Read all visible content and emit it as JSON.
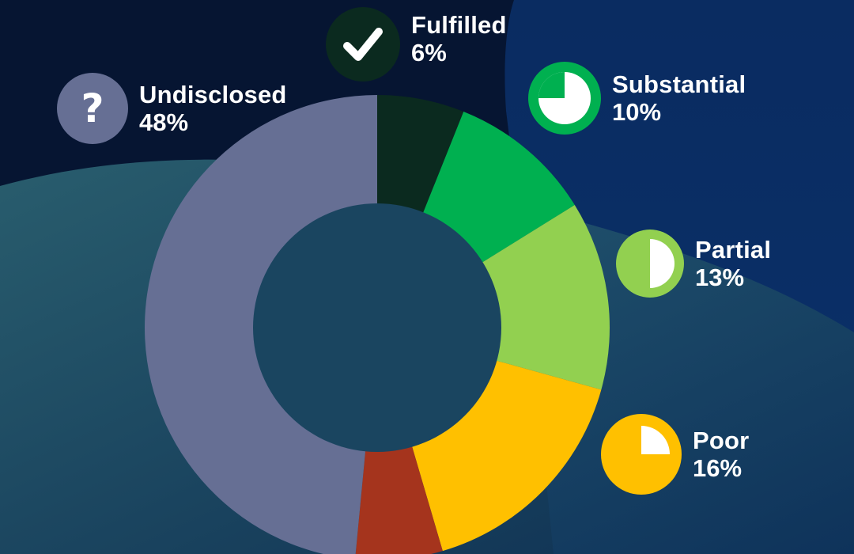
{
  "chart_data": {
    "type": "pie",
    "donut": true,
    "start": "top",
    "direction": "clockwise",
    "slices": [
      {
        "name": "Fulfilled",
        "value": 6,
        "label": "6%",
        "color": "#0b2a1f",
        "icon": "checkmark-icon"
      },
      {
        "name": "Substantial",
        "value": 10,
        "label": "10%",
        "color": "#00b050",
        "icon": "three-quarter-pie-icon"
      },
      {
        "name": "Partial",
        "value": 13,
        "label": "13%",
        "color": "#92d050",
        "icon": "half-pie-icon"
      },
      {
        "name": "Poor",
        "value": 16,
        "label": "16%",
        "color": "#ffc000",
        "icon": "quarter-pie-icon"
      },
      {
        "name": "",
        "value": 6,
        "label": "",
        "color": "#a5341d",
        "icon": ""
      },
      {
        "name": "Undisclosed",
        "value": 48,
        "label": "48%",
        "color": "#666f94",
        "icon": "question-mark-icon"
      }
    ]
  },
  "icons": {
    "question_mark": "?"
  },
  "colors": {
    "background": "#071a3a",
    "hole": "#1a4560"
  }
}
